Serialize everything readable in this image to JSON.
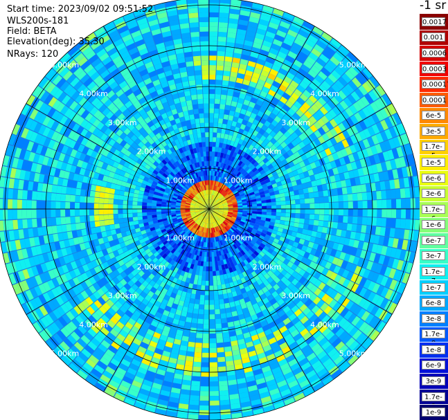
{
  "info": {
    "start_time": "Start time: 2023/09/02 09:51:52",
    "instrument": "WLS200s-181",
    "field": "Field: BETA",
    "elevation": "Elevation(deg): 35.30",
    "nrays": "NRays: 120"
  },
  "colorbar": {
    "unit": "-1 sr",
    "labels": [
      "0.0017",
      "0.001",
      "0.0006",
      "0.0003",
      "0.00017",
      "0.0001",
      "6e-5",
      "3e-5",
      "1.7e-5",
      "1e-5",
      "6e-6",
      "3e-6",
      "1.7e-6",
      "1e-6",
      "6e-7",
      "3e-7",
      "1.7e-7",
      "1e-7",
      "6e-8",
      "3e-8",
      "1.7e-8",
      "1e-8",
      "6e-9",
      "3e-9",
      "1.7e-9",
      "1e-9"
    ],
    "colors": [
      "#8a0000",
      "#b00000",
      "#d40000",
      "#f00000",
      "#ff2a00",
      "#ff5a00",
      "#ff8800",
      "#ffaa00",
      "#ffd000",
      "#ffef00",
      "#eaff10",
      "#c8ff30",
      "#a8ff55",
      "#85ff78",
      "#60ffa0",
      "#38ffc8",
      "#10f0f0",
      "#00d0ff",
      "#00a8ff",
      "#0080ff",
      "#0058ff",
      "#0030f0",
      "#0010d8",
      "#0000b8",
      "#000095",
      "#000070"
    ]
  },
  "chart_data": {
    "type": "heatmap",
    "projection": "polar (PPI scan)",
    "field": "BETA",
    "rays": 120,
    "range_rings_km": [
      1,
      2,
      3,
      4,
      5
    ],
    "ring_labels": [
      "1.00km",
      "2.00km",
      "3.00km",
      "4.00km",
      "5.00km"
    ],
    "max_range_km": 5.6,
    "scale": "log",
    "value_range": [
      1e-09,
      0.0017
    ],
    "features": [
      {
        "name": "near-field aerosol ring",
        "range_km": [
          0.55,
          0.7
        ],
        "value_approx": 0.0001
      },
      {
        "name": "upper arc",
        "range_km": [
          3.3,
          3.7
        ],
        "azimuth_deg": [
          5,
          60
        ],
        "value_approx": 1e-05
      },
      {
        "name": "lower arc",
        "range_km": [
          3.3,
          4.0
        ],
        "azimuth_deg": [
          110,
          230
        ],
        "value_approx": 1e-05
      },
      {
        "name": "background",
        "value_approx": 3e-08
      }
    ]
  }
}
